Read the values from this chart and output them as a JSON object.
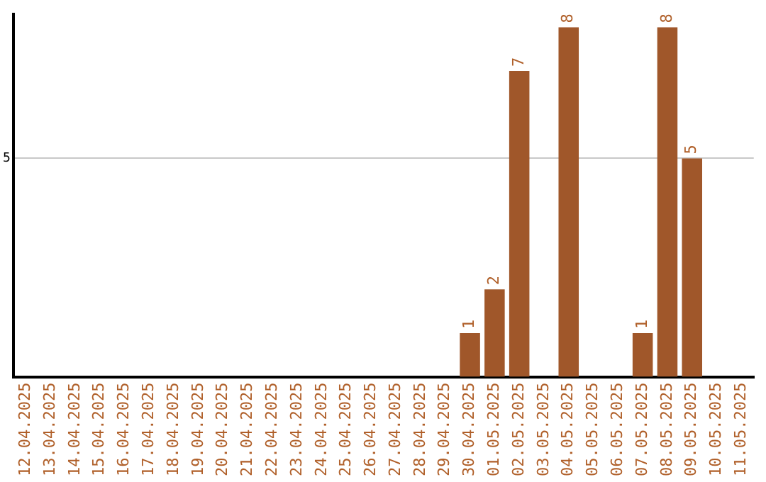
{
  "chart_data": {
    "type": "bar",
    "categories": [
      "12.04.2025",
      "13.04.2025",
      "14.04.2025",
      "15.04.2025",
      "16.04.2025",
      "17.04.2025",
      "18.04.2025",
      "19.04.2025",
      "20.04.2025",
      "21.04.2025",
      "22.04.2025",
      "23.04.2025",
      "24.04.2025",
      "25.04.2025",
      "26.04.2025",
      "27.04.2025",
      "28.04.2025",
      "29.04.2025",
      "30.04.2025",
      "01.05.2025",
      "02.05.2025",
      "03.05.2025",
      "04.05.2025",
      "05.05.2025",
      "06.05.2025",
      "07.05.2025",
      "08.05.2025",
      "09.05.2025",
      "10.05.2025",
      "11.05.2025"
    ],
    "values": [
      null,
      null,
      null,
      null,
      null,
      null,
      null,
      null,
      null,
      null,
      null,
      null,
      null,
      null,
      null,
      null,
      null,
      null,
      1,
      2,
      7,
      null,
      8,
      null,
      null,
      1,
      8,
      5,
      null,
      null
    ],
    "data_labels": true,
    "color": "#a0572a",
    "ylim": [
      0,
      8.3
    ],
    "yticks": [
      5
    ],
    "grid": "y"
  }
}
